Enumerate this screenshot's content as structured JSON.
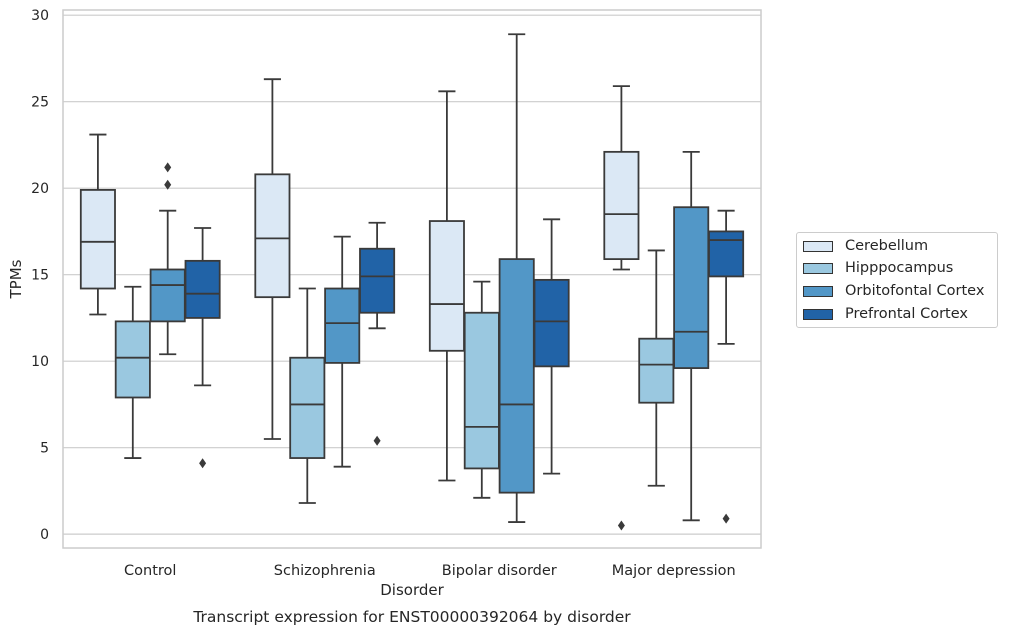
{
  "chart_data": {
    "type": "box",
    "title": "Transcript expression for ENST00000392064 by disorder",
    "xlabel": "Disorder",
    "ylabel": "TPMs",
    "ylim": [
      -0.8,
      30.3
    ],
    "yticks": [
      0,
      5,
      10,
      15,
      20,
      25,
      30
    ],
    "grid": "horizontal",
    "legend_position": "right",
    "categories": [
      "Control",
      "Schizophrenia",
      "Bipolar disorder",
      "Major depression"
    ],
    "series": [
      {
        "name": "Cerebellum",
        "color": "#dbe8f5",
        "boxes": [
          {
            "min": 12.7,
            "q1": 14.2,
            "median": 16.9,
            "q3": 19.9,
            "max": 23.1,
            "outliers": []
          },
          {
            "min": 5.5,
            "q1": 13.7,
            "median": 17.1,
            "q3": 20.8,
            "max": 26.3,
            "outliers": []
          },
          {
            "min": 3.1,
            "q1": 10.6,
            "median": 13.3,
            "q3": 18.1,
            "max": 25.6,
            "outliers": []
          },
          {
            "min": 15.3,
            "q1": 15.9,
            "median": 18.5,
            "q3": 22.1,
            "max": 25.9,
            "outliers": [
              0.5
            ]
          }
        ]
      },
      {
        "name": "Hipppocampus",
        "color": "#9ac8e0",
        "boxes": [
          {
            "min": 4.4,
            "q1": 7.9,
            "median": 10.2,
            "q3": 12.3,
            "max": 14.3,
            "outliers": []
          },
          {
            "min": 1.8,
            "q1": 4.4,
            "median": 7.5,
            "q3": 10.2,
            "max": 14.2,
            "outliers": []
          },
          {
            "min": 2.1,
            "q1": 3.8,
            "median": 6.2,
            "q3": 12.8,
            "max": 14.6,
            "outliers": []
          },
          {
            "min": 2.8,
            "q1": 7.6,
            "median": 9.8,
            "q3": 11.3,
            "max": 16.4,
            "outliers": []
          }
        ]
      },
      {
        "name": "Orbitofontal Cortex",
        "color": "#5297c7",
        "boxes": [
          {
            "min": 10.4,
            "q1": 12.3,
            "median": 14.4,
            "q3": 15.3,
            "max": 18.7,
            "outliers": [
              20.2,
              21.2
            ]
          },
          {
            "min": 3.9,
            "q1": 9.9,
            "median": 12.2,
            "q3": 14.2,
            "max": 17.2,
            "outliers": []
          },
          {
            "min": 0.7,
            "q1": 2.4,
            "median": 7.5,
            "q3": 15.9,
            "max": 28.9,
            "outliers": []
          },
          {
            "min": 0.8,
            "q1": 9.6,
            "median": 11.7,
            "q3": 18.9,
            "max": 22.1,
            "outliers": []
          }
        ]
      },
      {
        "name": "Prefrontal Cortex",
        "color": "#2163a7",
        "boxes": [
          {
            "min": 8.6,
            "q1": 12.5,
            "median": 13.9,
            "q3": 15.8,
            "max": 17.7,
            "outliers": [
              4.1
            ]
          },
          {
            "min": 11.9,
            "q1": 12.8,
            "median": 14.9,
            "q3": 16.5,
            "max": 18.0,
            "outliers": [
              5.4
            ]
          },
          {
            "min": 3.5,
            "q1": 9.7,
            "median": 12.3,
            "q3": 14.7,
            "max": 18.2,
            "outliers": []
          },
          {
            "min": 11.0,
            "q1": 14.9,
            "median": 17.0,
            "q3": 17.5,
            "max": 18.7,
            "outliers": [
              0.9
            ]
          }
        ]
      }
    ]
  }
}
